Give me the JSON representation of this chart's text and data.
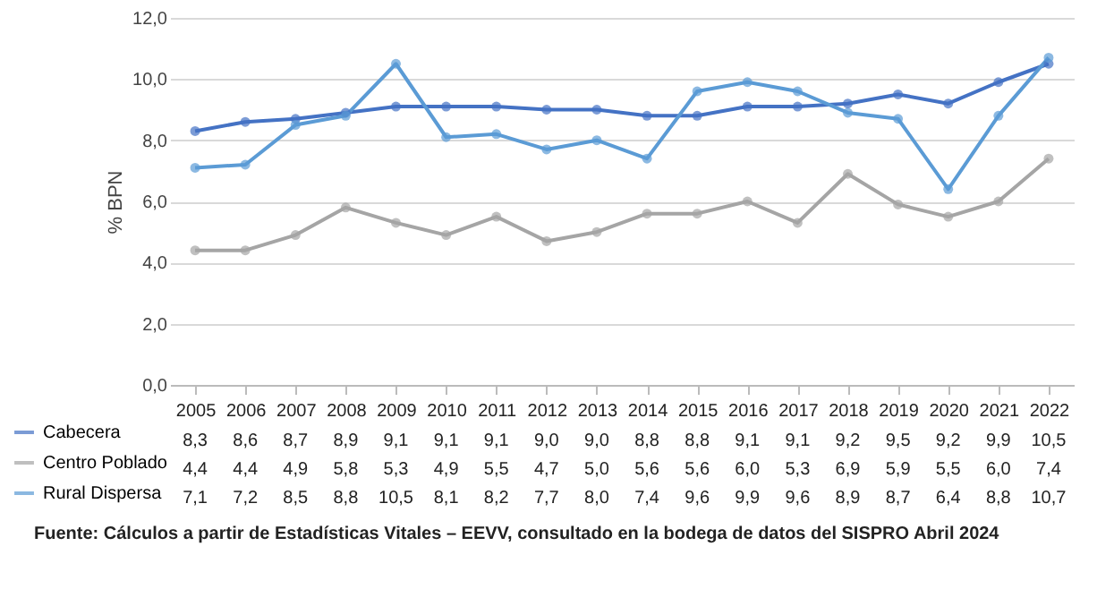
{
  "chart_data": {
    "type": "line",
    "ylabel": "% BPN",
    "categories": [
      "2005",
      "2006",
      "2007",
      "2008",
      "2009",
      "2010",
      "2011",
      "2012",
      "2013",
      "2014",
      "2015",
      "2016",
      "2017",
      "2018",
      "2019",
      "2020",
      "2021",
      "2022"
    ],
    "series": [
      {
        "name": "Cabecera",
        "color": "#4472c4",
        "values": [
          8.3,
          8.6,
          8.7,
          8.9,
          9.1,
          9.1,
          9.1,
          9.0,
          9.0,
          8.8,
          8.8,
          9.1,
          9.1,
          9.2,
          9.5,
          9.2,
          9.9,
          10.5
        ],
        "value_labels": [
          "8,3",
          "8,6",
          "8,7",
          "8,9",
          "9,1",
          "9,1",
          "9,1",
          "9,0",
          "9,0",
          "8,8",
          "8,8",
          "9,1",
          "9,1",
          "9,2",
          "9,5",
          "9,2",
          "9,9",
          "10,5"
        ]
      },
      {
        "name": "Centro Poblado",
        "color": "#a5a5a5",
        "values": [
          4.4,
          4.4,
          4.9,
          5.8,
          5.3,
          4.9,
          5.5,
          4.7,
          5.0,
          5.6,
          5.6,
          6.0,
          5.3,
          6.9,
          5.9,
          5.5,
          6.0,
          7.4
        ],
        "value_labels": [
          "4,4",
          "4,4",
          "4,9",
          "5,8",
          "5,3",
          "4,9",
          "5,5",
          "4,7",
          "5,0",
          "5,6",
          "5,6",
          "6,0",
          "5,3",
          "6,9",
          "5,9",
          "5,5",
          "6,0",
          "7,4"
        ]
      },
      {
        "name": "Rural Dispersa",
        "color": "#5b9bd5",
        "values": [
          7.1,
          7.2,
          8.5,
          8.8,
          10.5,
          8.1,
          8.2,
          7.7,
          8.0,
          7.4,
          9.6,
          9.9,
          9.6,
          8.9,
          8.7,
          6.4,
          8.8,
          10.7
        ],
        "value_labels": [
          "7,1",
          "7,2",
          "8,5",
          "8,8",
          "10,5",
          "8,1",
          "8,2",
          "7,7",
          "8,0",
          "7,4",
          "9,6",
          "9,9",
          "9,6",
          "8,9",
          "8,7",
          "6,4",
          "8,8",
          "10,7"
        ]
      }
    ],
    "ylim": [
      0,
      12
    ],
    "yticks": [
      {
        "value": 0,
        "label": "0,0"
      },
      {
        "value": 2,
        "label": "2,0"
      },
      {
        "value": 4,
        "label": "4,0"
      },
      {
        "value": 6,
        "label": "6,0"
      },
      {
        "value": 8,
        "label": "8,0"
      },
      {
        "value": 10,
        "label": "10,0"
      },
      {
        "value": 12,
        "label": "12,0"
      }
    ],
    "grid": "y",
    "marker": "circle",
    "legend": "bottom left",
    "annotations": [
      "Fuente: Cálculos a partir de Estadísticas Vitales – EEVV, consultado en la bodega de datos del SISPRO Abril 2024"
    ]
  }
}
